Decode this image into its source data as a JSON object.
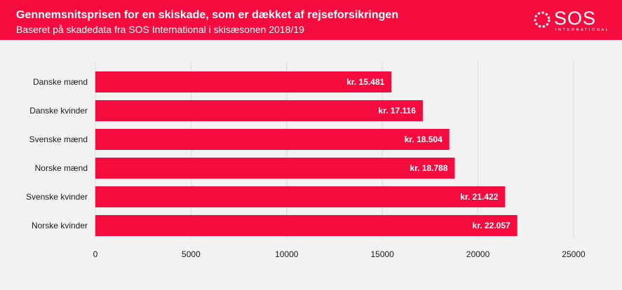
{
  "header": {
    "title": "Gennemsnitsprisen for en skiskade, som er dækket af rejseforsikringen",
    "subtitle": "Baseret på skadedata fra SOS International i skisæsonen 2018/19",
    "logo_text": "SOS",
    "logo_subtext": "INTERNATIONAL"
  },
  "colors": {
    "brand": "#f40c3f",
    "bar": "#f40c3f",
    "background": "#f2f2f2",
    "grid": "#d9d9d9"
  },
  "chart_data": {
    "type": "bar",
    "orientation": "horizontal",
    "categories": [
      "Danske mænd",
      "Danske kvinder",
      "Svenske mænd",
      "Norske mænd",
      "Svenske kvinder",
      "Norske kvinder"
    ],
    "values": [
      15481,
      17116,
      18504,
      18788,
      21422,
      22057
    ],
    "value_labels": [
      "kr. 15.481",
      "kr. 17.116",
      "kr. 18.504",
      "kr. 18.788",
      "kr. 21.422",
      "kr. 22.057"
    ],
    "xlim": [
      0,
      25000
    ],
    "xticks": [
      0,
      5000,
      10000,
      15000,
      20000,
      25000
    ],
    "xtick_labels": [
      "0",
      "5000",
      "10000",
      "15000",
      "20000",
      "25000"
    ],
    "grid": true
  }
}
